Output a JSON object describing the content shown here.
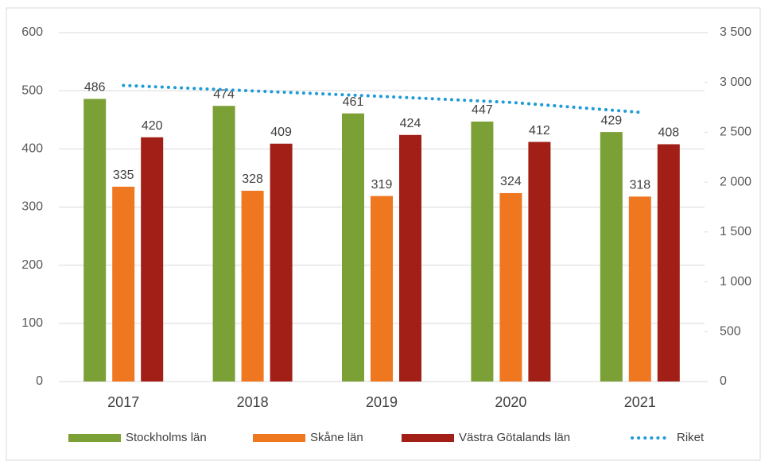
{
  "chart_data": {
    "type": "bar",
    "categories": [
      "2017",
      "2018",
      "2019",
      "2020",
      "2021"
    ],
    "series": [
      {
        "name": "Stockholms län",
        "color": "#7aa036",
        "values": [
          486,
          474,
          461,
          447,
          429
        ]
      },
      {
        "name": "Skåne län",
        "color": "#ee7720",
        "values": [
          335,
          328,
          319,
          324,
          318
        ]
      },
      {
        "name": "Västra Götalands län",
        "color": "#a11f16",
        "values": [
          420,
          409,
          424,
          412,
          408
        ]
      },
      {
        "name": "Riket",
        "color": "#1f9bd7",
        "type": "line",
        "axis": "y2",
        "values": [
          2970,
          2915,
          2860,
          2800,
          2700
        ]
      }
    ],
    "ylim": [
      0,
      600
    ],
    "yticks": [
      0,
      100,
      200,
      300,
      400,
      500,
      600
    ],
    "y2lim": [
      0,
      3500
    ],
    "y2ticks": [
      0,
      500,
      {
        "value": 1000,
        "label": "1 000"
      },
      {
        "value": 1500,
        "label": "1 500"
      },
      {
        "value": 2000,
        "label": "2 000"
      },
      {
        "value": 2500,
        "label": "2 500"
      },
      {
        "value": 3000,
        "label": "3 000"
      },
      {
        "value": 3500,
        "label": "3 500"
      }
    ],
    "grid": true,
    "legend": "bottom"
  }
}
